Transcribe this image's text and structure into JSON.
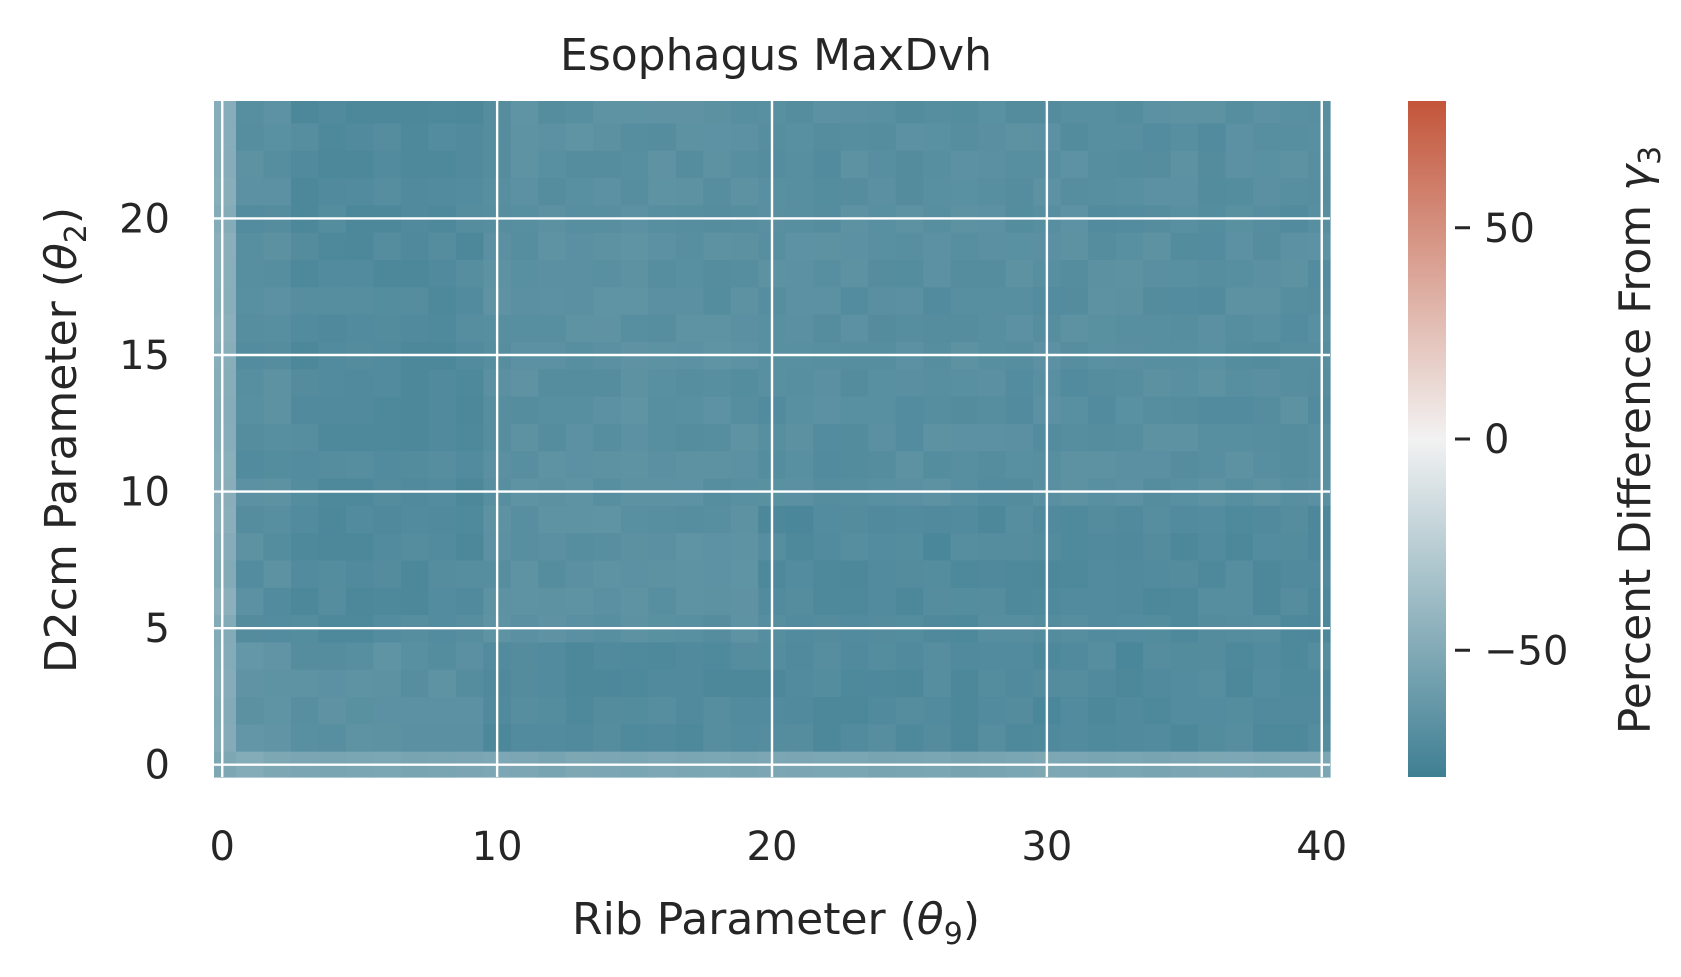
{
  "chart_data": {
    "type": "heatmap",
    "title": "Esophagus MaxDvh",
    "xlabel": {
      "main": "Rib Parameter (",
      "symbol": "θ",
      "sub": "9",
      "close": ")"
    },
    "ylabel": {
      "main": "D2cm Parameter (",
      "symbol": "θ",
      "sub": "2",
      "close": ")"
    },
    "colorbar_label": {
      "main": "Percent Difference From ",
      "symbol": "γ",
      "sub": "3"
    },
    "xlim": [
      -0.3,
      40.3
    ],
    "ylim": [
      -0.45,
      24.3
    ],
    "x_ticks": [
      0,
      10,
      20,
      30,
      40
    ],
    "x_tick_labels": [
      "0",
      "10",
      "20",
      "30",
      "40"
    ],
    "y_ticks": [
      0,
      5,
      10,
      15,
      20
    ],
    "y_tick_labels": [
      "0",
      "5",
      "10",
      "15",
      "20"
    ],
    "colorbar": {
      "vmin": -80,
      "vmax": 80,
      "ticks": [
        -50,
        0,
        50
      ],
      "tick_labels": [
        "−50",
        "0",
        "50"
      ],
      "colors": [
        "#3f7f93",
        "#f2f2f2",
        "#c3553a"
      ]
    },
    "grid": true,
    "description_of_values": "All cells approximately -65 to -80 percent (teal), lighter (about -55) at theta2=0 row and theta9=0 column",
    "x_values_sample": [
      0,
      5,
      10,
      15,
      20,
      25,
      30,
      35,
      40
    ],
    "y_values_sample": [
      0,
      5,
      10,
      15,
      20
    ],
    "z_estimates": {
      "row_theta2_0": -55,
      "col_theta9_0": -50,
      "region_theta9_0_10": -72,
      "region_theta9_10_20": -68,
      "region_theta9_20_40": -68
    }
  }
}
